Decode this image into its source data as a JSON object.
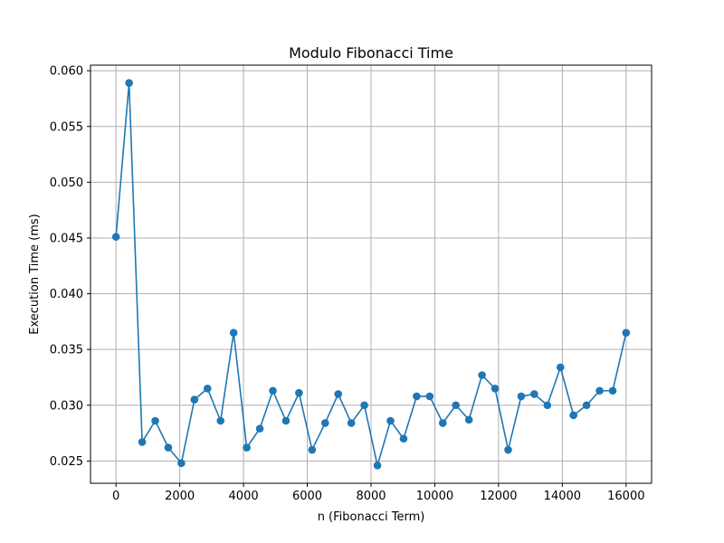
{
  "chart_data": {
    "type": "line",
    "title": "Modulo Fibonacci Time",
    "xlabel": "n (Fibonacci Term)",
    "ylabel": "Execution Time (ms)",
    "xlim": [
      -800,
      16800
    ],
    "ylim": [
      0.023,
      0.0605
    ],
    "xticks": [
      0,
      2000,
      4000,
      6000,
      8000,
      10000,
      12000,
      14000,
      16000
    ],
    "xtick_labels": [
      "0",
      "2000",
      "4000",
      "6000",
      "8000",
      "10000",
      "12000",
      "14000",
      "16000"
    ],
    "yticks": [
      0.025,
      0.03,
      0.035,
      0.04,
      0.045,
      0.05,
      0.055,
      0.06
    ],
    "ytick_labels": [
      "0.025",
      "0.030",
      "0.035",
      "0.040",
      "0.045",
      "0.050",
      "0.055",
      "0.060"
    ],
    "grid": true,
    "color": "#1f77b4",
    "marker": "circle",
    "x": [
      0,
      410,
      820,
      1230,
      1640,
      2050,
      2460,
      2870,
      3280,
      3690,
      4100,
      4510,
      4920,
      5330,
      5740,
      6150,
      6560,
      6970,
      7380,
      7790,
      8200,
      8610,
      9020,
      9430,
      9840,
      10250,
      10660,
      11070,
      11480,
      11890,
      12300,
      12710,
      13120,
      13530,
      13940,
      14350,
      14760,
      15170,
      15580,
      16000
    ],
    "y": [
      0.0451,
      0.0589,
      0.0267,
      0.0286,
      0.0262,
      0.0248,
      0.0305,
      0.0315,
      0.0286,
      0.0365,
      0.0262,
      0.0279,
      0.0313,
      0.0286,
      0.0311,
      0.026,
      0.0284,
      0.031,
      0.0284,
      0.03,
      0.0246,
      0.0286,
      0.027,
      0.0308,
      0.0308,
      0.0284,
      0.03,
      0.0287,
      0.0327,
      0.0315,
      0.026,
      0.0308,
      0.031,
      0.03,
      0.0334,
      0.0291,
      0.03,
      0.0313,
      0.0313,
      0.0365
    ]
  }
}
